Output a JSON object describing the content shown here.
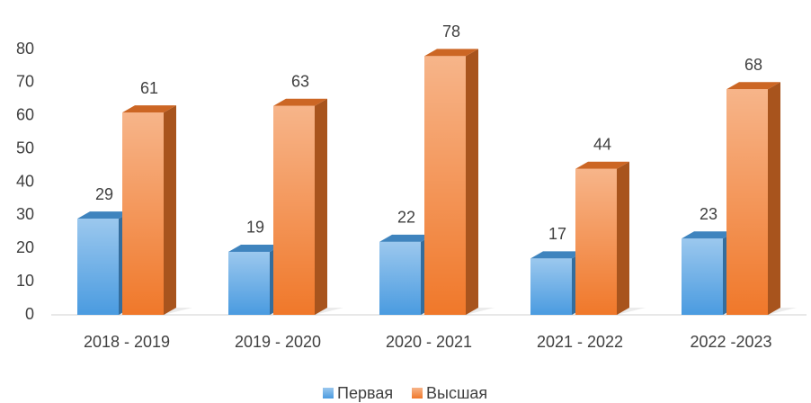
{
  "chart_data": {
    "type": "bar3d",
    "categories": [
      "2018 - 2019",
      "2019 - 2020",
      "2020 - 2021",
      "2021 - 2022",
      "2022 -2023"
    ],
    "series": [
      {
        "name": "Первая",
        "color": "#4a9be0",
        "values": [
          29,
          19,
          22,
          17,
          23
        ]
      },
      {
        "name": "Высшая",
        "color": "#f0782a",
        "values": [
          61,
          63,
          78,
          44,
          68
        ]
      }
    ],
    "ylim": [
      0,
      80
    ],
    "yticks": [
      0,
      10,
      20,
      30,
      40,
      50,
      60,
      70,
      80
    ],
    "legend": "bottom"
  }
}
